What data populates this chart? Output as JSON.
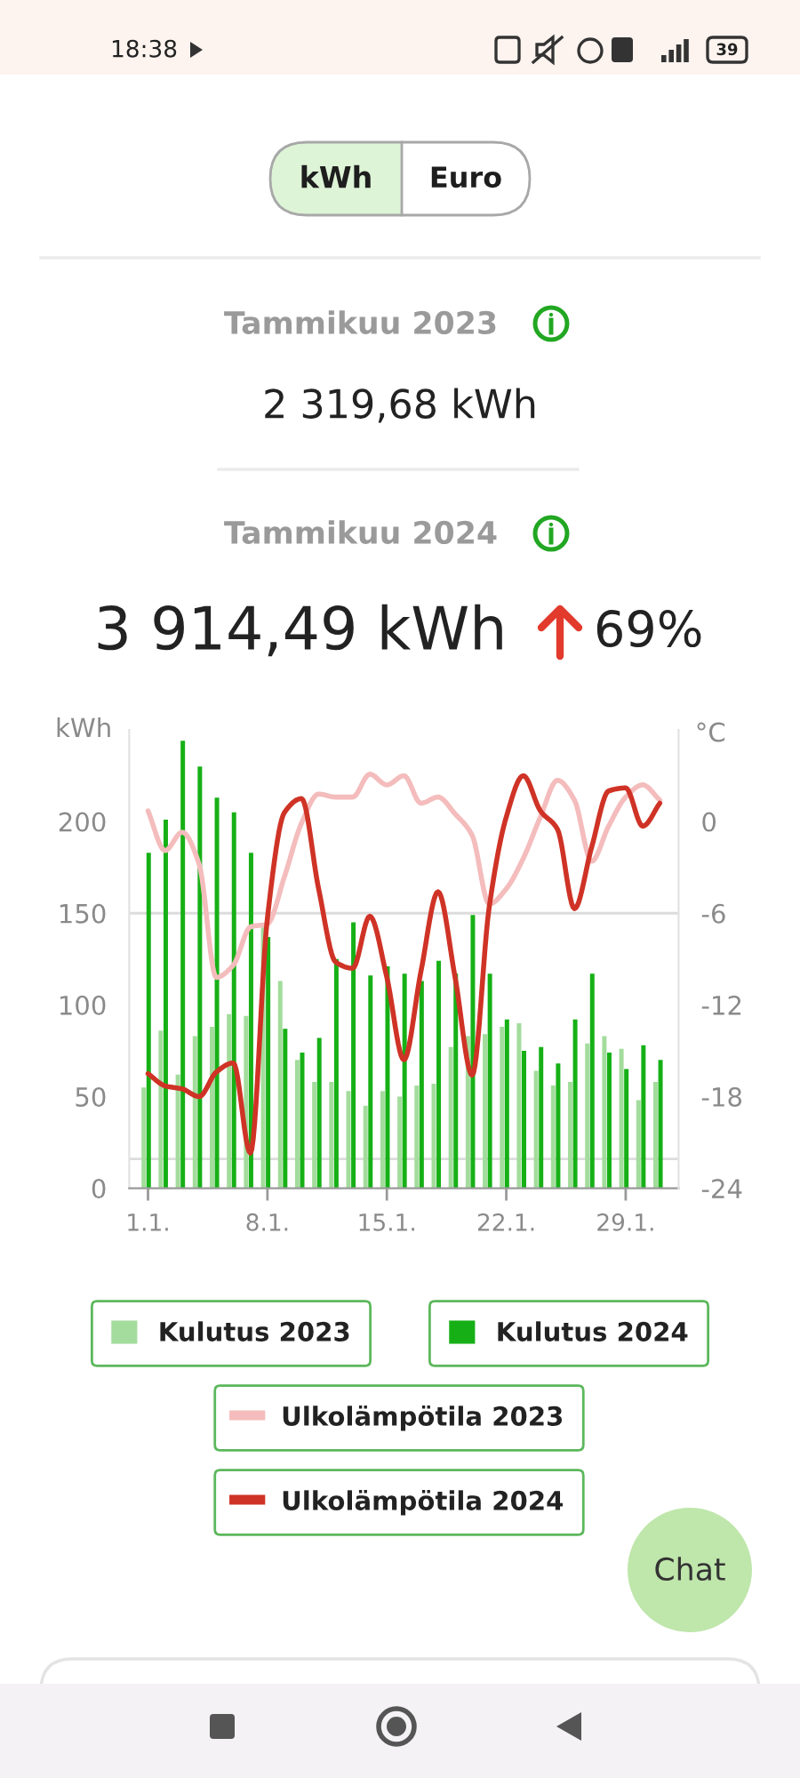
{
  "chart_data": {
    "type": "bar",
    "annotations": [
      "18:38",
      "39",
      "kWh",
      "Euro",
      "Tammikuu 2023",
      "2 319,68 kWh",
      "Tammikuu 2024",
      "3 914,49 kWh",
      "69%",
      "Chat"
    ],
    "ylabel": "kWh",
    "y2label": "°C",
    "categories": [
      "1.1.",
      null,
      null,
      null,
      null,
      null,
      null,
      "8.1.",
      null,
      null,
      null,
      null,
      null,
      null,
      "15.1.",
      null,
      null,
      null,
      null,
      null,
      null,
      "22.1.",
      null,
      null,
      null,
      null,
      null,
      null,
      "29.1.",
      null,
      null
    ],
    "series": [
      {
        "name": "Kulutus 2023",
        "color": "#a3dc9c",
        "values": [
          55,
          86,
          62,
          83,
          88,
          95,
          94,
          143,
          113,
          70,
          58,
          58,
          53,
          45,
          53,
          50,
          56,
          57,
          77,
          83,
          84,
          88,
          90,
          64,
          56,
          58,
          79,
          83,
          76,
          48,
          58
        ]
      },
      {
        "name": "Kulutus 2024",
        "color": "#16b016",
        "values": [
          183,
          201,
          244,
          230,
          213,
          205,
          183,
          137,
          87,
          74,
          82,
          125,
          145,
          116,
          121,
          117,
          113,
          124,
          117,
          149,
          117,
          92,
          75,
          77,
          68,
          92,
          117,
          74,
          65,
          78,
          70
        ]
      },
      {
        "name": "Ulkolämpötila 2023",
        "type": "line",
        "axis": "y2",
        "color": "#f4bcbc",
        "values": [
          0.7,
          -1.9,
          -0.7,
          -2.8,
          -10.2,
          -9.4,
          -6.9,
          -6.7,
          -3.6,
          -0.1,
          1.8,
          1.6,
          1.6,
          3.1,
          2.4,
          3.0,
          1.2,
          1.6,
          0.5,
          -0.9,
          -5.4,
          -4.4,
          -2.4,
          0.3,
          2.7,
          1.4,
          -2.6,
          -0.3,
          1.6,
          2.4,
          1.4
        ]
      },
      {
        "name": "Ulkolämpötila 2024",
        "type": "line",
        "axis": "y2",
        "color": "#cf3326",
        "values": [
          -16.5,
          -17.3,
          -17.5,
          -18.0,
          -16.4,
          -15.8,
          -21.7,
          -6.3,
          0.6,
          1.5,
          -4.4,
          -9.2,
          -9.6,
          -6.2,
          -10.2,
          -15.6,
          -9.8,
          -4.6,
          -10.2,
          -16.6,
          -5.6,
          0.3,
          3.0,
          0.7,
          -0.5,
          -5.7,
          -1.7,
          2.0,
          2.2,
          -0.3,
          1.2
        ]
      }
    ],
    "ylim": [
      0,
      250
    ],
    "yticks": [
      0,
      50,
      100,
      150,
      200
    ],
    "y2lim": [
      -24,
      6
    ],
    "y2ticks": [
      -24,
      -18,
      -12,
      -6,
      0
    ],
    "ref_lines": [
      {
        "axis": "y",
        "value": 150,
        "color": "#dcdcdc"
      },
      {
        "axis": "y",
        "value": 16,
        "color": "#dcdcdc"
      }
    ],
    "legend": "bottom"
  }
}
